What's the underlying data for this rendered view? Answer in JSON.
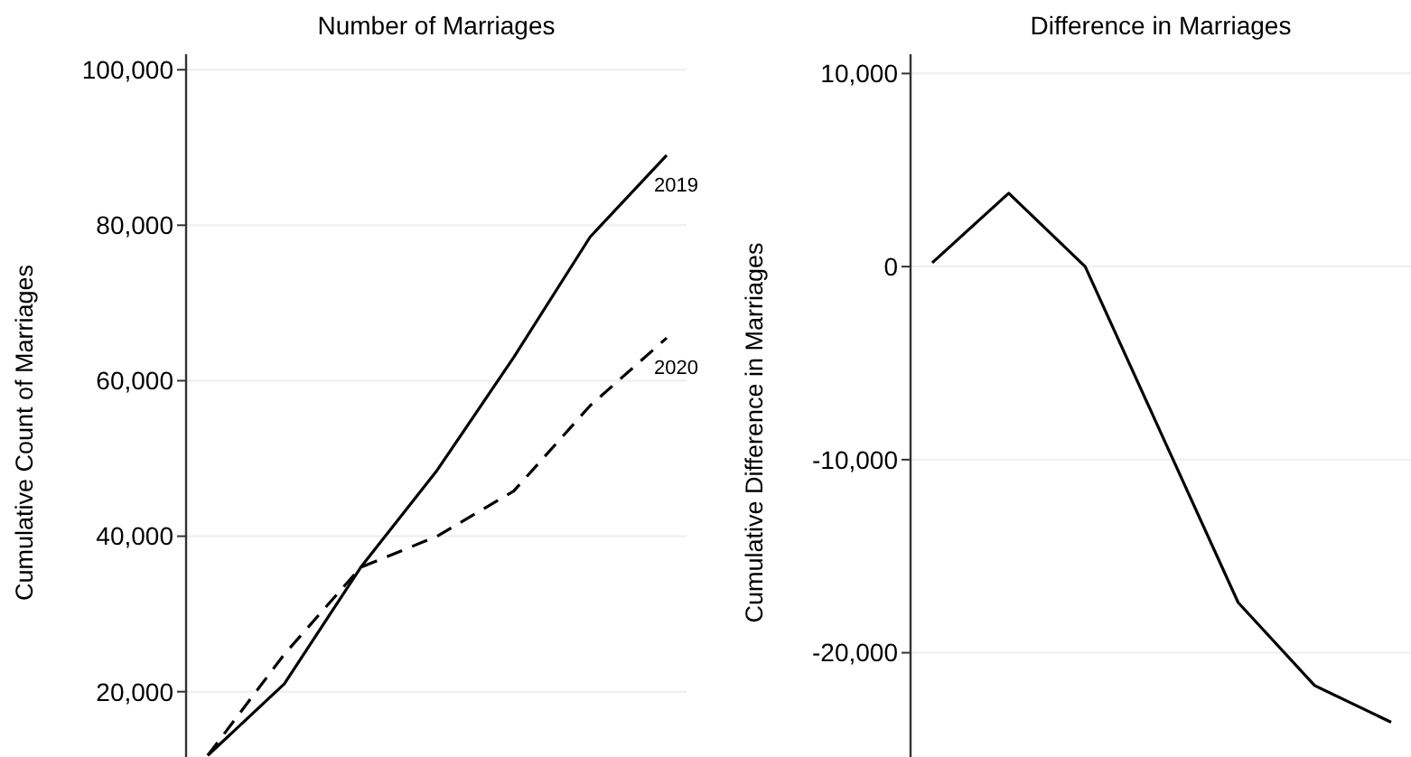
{
  "chart_data": [
    {
      "type": "line",
      "title": "Number of Marriages",
      "ylabel": "Cumulative Count of Marriages",
      "categories": [
        null,
        null,
        null,
        null,
        null,
        null,
        null
      ],
      "ylim": [
        11600,
        102000
      ],
      "yticks": [
        {
          "value": 20000,
          "label": "20,000"
        },
        {
          "value": 40000,
          "label": "40,000"
        },
        {
          "value": 60000,
          "label": "60,000"
        },
        {
          "value": 80000,
          "label": "80,000"
        },
        {
          "value": 100000,
          "label": "100,000"
        }
      ],
      "grid": "y",
      "tick_labels": "y",
      "series": [
        {
          "name": "2019",
          "color": "#000000",
          "line_style": "solid",
          "values": [
            11800,
            21000,
            36000,
            48500,
            63000,
            78500,
            89000
          ]
        },
        {
          "name": "2020",
          "color": "#000000",
          "line_style": "dashed",
          "values": [
            11800,
            24800,
            36000,
            40000,
            45800,
            56800,
            65500
          ]
        }
      ]
    },
    {
      "type": "line",
      "title": "Difference in Marriages",
      "ylabel": "Cumulative Difference in Marriages",
      "categories": [
        null,
        null,
        null,
        null,
        null,
        null,
        null
      ],
      "ylim": [
        -25400,
        11000
      ],
      "yticks": [
        {
          "value": -20000,
          "label": "-20,000"
        },
        {
          "value": -10000,
          "label": "-10,000"
        },
        {
          "value": 0,
          "label": "0"
        },
        {
          "value": 10000,
          "label": "10,000"
        }
      ],
      "grid": "y",
      "tick_labels": "y",
      "series": [
        {
          "color": "#000000",
          "line_style": "solid",
          "values": [
            200,
            3800,
            0,
            -8700,
            -17400,
            -21700,
            -23600
          ]
        }
      ]
    }
  ]
}
